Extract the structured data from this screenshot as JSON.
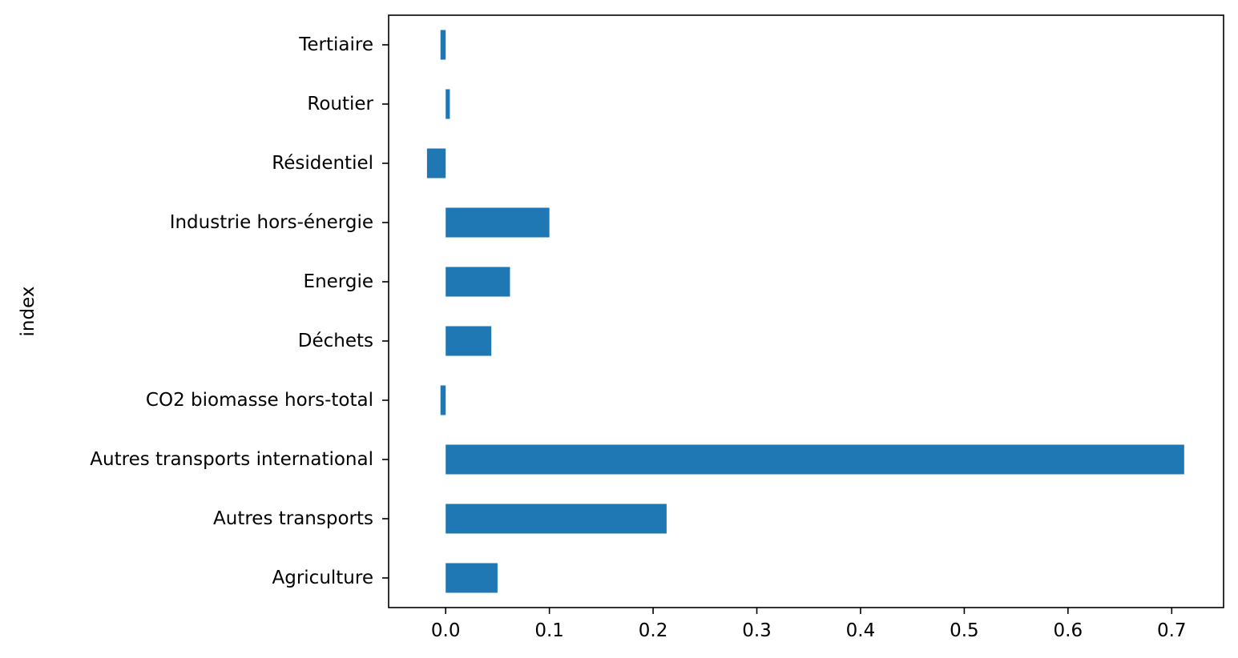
{
  "chart_data": {
    "type": "bar",
    "orientation": "horizontal",
    "title": "",
    "xlabel": "",
    "ylabel": "index",
    "xlim": [
      -0.055,
      0.75
    ],
    "grid": false,
    "legend": "none",
    "bar_color": "#1f77b4",
    "categories": [
      "Agriculture",
      "Autres transports",
      "Autres transports international",
      "CO2 biomasse hors-total",
      "Déchets",
      "Energie",
      "Industrie hors-énergie",
      "Résidentiel",
      "Routier",
      "Tertiaire"
    ],
    "values": [
      0.05,
      0.213,
      0.712,
      -0.005,
      0.044,
      0.062,
      0.1,
      -0.018,
      0.004,
      -0.005
    ],
    "xticks": [
      0.0,
      0.1,
      0.2,
      0.3,
      0.4,
      0.5,
      0.6,
      0.7
    ],
    "xtick_labels": [
      "0.0",
      "0.1",
      "0.2",
      "0.3",
      "0.4",
      "0.5",
      "0.6",
      "0.7"
    ]
  }
}
